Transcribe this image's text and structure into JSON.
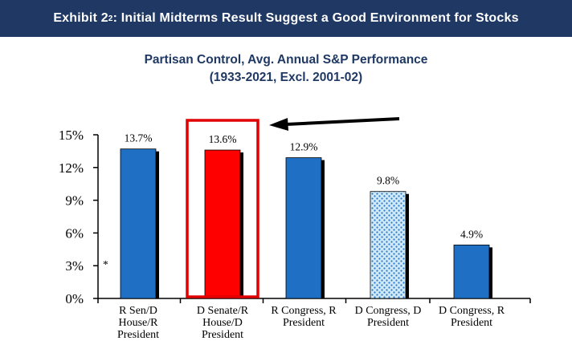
{
  "banner": {
    "prefix": "Exhibit 2",
    "superscript": "2",
    "suffix": ": Initial Midterms Result Suggest a Good Environment for Stocks"
  },
  "chart_data": {
    "type": "bar",
    "title": "Partisan Control, Avg. Annual S&P Performance",
    "subtitle": "(1933-2021, Excl. 2001-02)",
    "categories": [
      [
        "R Sen/D",
        "House/R",
        "President"
      ],
      [
        "D Senate/R",
        "House/D",
        "President"
      ],
      [
        "R Congress, R",
        "President"
      ],
      [
        "D Congress, D",
        "President"
      ],
      [
        "D Congress, R",
        "President"
      ]
    ],
    "values": [
      13.7,
      13.6,
      12.9,
      9.8,
      4.9
    ],
    "data_labels": [
      "13.7%",
      "13.6%",
      "12.9%",
      "9.8%",
      "4.9%"
    ],
    "ylim": [
      0,
      15
    ],
    "yticks": [
      0,
      3,
      6,
      9,
      12,
      15
    ],
    "ytick_labels": [
      "0%",
      "3%",
      "6%",
      "9%",
      "12%",
      "15%"
    ],
    "xlabel": "",
    "ylabel": "",
    "annotation": "*",
    "highlighted_category_index": 1,
    "colors": {
      "bar": "#1f6fc5",
      "highlight_bar": "#ff0000",
      "highlight_box": "#e00000",
      "dotted_bar_bg": "#cfe9f7",
      "dotted_bar_dot": "#2b78c8",
      "shadow": "#000000",
      "arrow": "#000000"
    }
  }
}
